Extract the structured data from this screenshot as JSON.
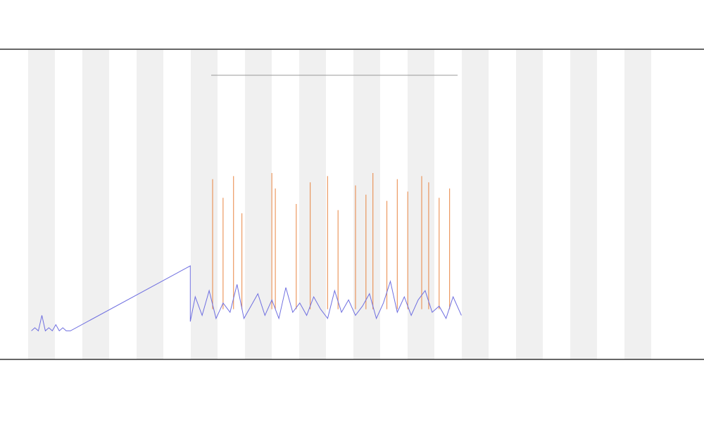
{
  "chart_data": {
    "type": "line",
    "xlim": [
      0,
      100
    ],
    "ylim": [
      0,
      100
    ],
    "series": [
      {
        "color": "#6f6fe0",
        "x": [
          4,
          4.5,
          5,
          5.5,
          6,
          6.5,
          7,
          7.5,
          8,
          8.5,
          9,
          9.6,
          26.8,
          26.8,
          27.5,
          28.5,
          29.5,
          30.5,
          31.5,
          32.5,
          33.5,
          34.5,
          35.5,
          36.5,
          37.5,
          38.5,
          39.5,
          40.5,
          41.5,
          42.5,
          43.5,
          44.5,
          45.5,
          46.5,
          47.5,
          48.5,
          49.5,
          50.5,
          51.5,
          52.5,
          53.5,
          54.5,
          55.5,
          56.5,
          57.5,
          58.5,
          59.5,
          60.5,
          61.5,
          62.5,
          63.5,
          64.5,
          65.7
        ],
        "values": [
          9,
          10,
          9,
          14,
          9,
          10,
          9,
          11,
          9,
          10,
          9,
          9,
          30,
          12,
          20,
          14,
          22,
          13,
          18,
          15,
          24,
          13,
          17,
          21,
          14,
          19,
          13,
          23,
          15,
          18,
          14,
          20,
          16,
          13,
          22,
          15,
          19,
          14,
          17,
          21,
          13,
          18,
          25,
          15,
          20,
          14,
          19,
          22,
          15,
          17,
          13,
          20,
          14
        ]
      },
      {
        "color": "#e8803a",
        "x": [
          30,
          31.5,
          33,
          34.2,
          38.5,
          39,
          42,
          44,
          46.5,
          48,
          50.5,
          52,
          53,
          55,
          56.5,
          58,
          60,
          61,
          62.5,
          64
        ],
        "values": [
          58,
          52,
          59,
          47,
          60,
          55,
          50,
          57,
          59,
          48,
          56,
          53,
          60,
          51,
          58,
          54,
          59,
          57,
          52,
          55
        ]
      }
    ]
  }
}
